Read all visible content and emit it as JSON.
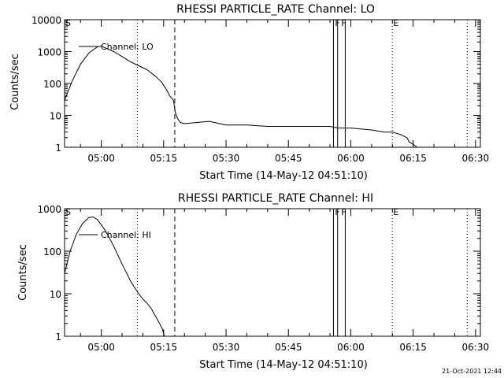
{
  "footer": {
    "date_stamp": "21-Oct-2021 12:44"
  },
  "colors": {
    "background": "#ffffff",
    "foreground": "#000000"
  },
  "chart_data": [
    {
      "type": "line",
      "title": "RHESSI PARTICLE_RATE Channel: LO",
      "xlabel": "Start Time (14-May-12 04:51:10)",
      "ylabel": "Counts/sec",
      "yscale": "log",
      "ylim": [
        1,
        10000
      ],
      "xlim": [
        "04:51:10",
        "06:31:10"
      ],
      "x_unit": "time (hh:mm:ss)",
      "x_ticks": [
        "05:00",
        "05:15",
        "05:30",
        "05:45",
        "06:00",
        "06:15",
        "06:30"
      ],
      "y_ticks": [
        "1",
        "10",
        "100",
        "1000",
        "10000"
      ],
      "legend": {
        "position": "top-left",
        "entries": [
          "Channel: LO"
        ]
      },
      "grid": false,
      "flags": [
        {
          "label": "S",
          "at": "04:51:10"
        },
        {
          "label": "F",
          "at": "05:56:00"
        },
        {
          "label": "F",
          "at": "05:57:30"
        },
        {
          "label": "E",
          "at": "06:10:00"
        }
      ],
      "vlines": [
        {
          "at": "05:08:40",
          "style": "dotted"
        },
        {
          "at": "05:17:40",
          "style": "dashed"
        },
        {
          "at": "05:55:50",
          "style": "solid"
        },
        {
          "at": "05:56:50",
          "style": "solid"
        },
        {
          "at": "05:58:40",
          "style": "solid"
        },
        {
          "at": "06:10:00",
          "style": "dotted"
        },
        {
          "at": "06:28:00",
          "style": "dotted"
        }
      ],
      "series": [
        {
          "name": "Channel: LO",
          "x": [
            "04:51:10",
            "04:53:00",
            "04:55:00",
            "04:57:00",
            "04:59:00",
            "05:00:00",
            "05:01:00",
            "05:03:00",
            "05:05:00",
            "05:07:00",
            "05:09:00",
            "05:11:00",
            "05:13:00",
            "05:14:30",
            "05:15:30",
            "05:16:30",
            "05:17:20",
            "05:17:50",
            "05:18:20",
            "05:19:00",
            "05:20:00",
            "05:23:00",
            "05:26:00",
            "05:30:00",
            "05:35:00",
            "05:40:00",
            "05:45:00",
            "05:50:00",
            "05:55:00",
            "05:57:00",
            "06:00:00",
            "06:05:00",
            "06:08:00",
            "06:10:00",
            "06:12:00",
            "06:13:30",
            "06:14:00",
            "06:16:00"
          ],
          "y": [
            30,
            120,
            400,
            900,
            1400,
            1500,
            1300,
            1000,
            700,
            480,
            360,
            270,
            170,
            110,
            70,
            40,
            30,
            12,
            8,
            6,
            5.5,
            6,
            6.5,
            5,
            5,
            4.5,
            4.5,
            4.5,
            4.5,
            4,
            4,
            3.5,
            3,
            3,
            2.5,
            2,
            1.5,
            1
          ]
        }
      ]
    },
    {
      "type": "line",
      "title": "RHESSI PARTICLE_RATE Channel: HI",
      "xlabel": "Start Time (14-May-12 04:51:10)",
      "ylabel": "Counts/sec",
      "yscale": "log",
      "ylim": [
        1,
        1000
      ],
      "xlim": [
        "04:51:10",
        "06:31:10"
      ],
      "x_unit": "time (hh:mm:ss)",
      "x_ticks": [
        "05:00",
        "05:15",
        "05:30",
        "05:45",
        "06:00",
        "06:15",
        "06:30"
      ],
      "y_ticks": [
        "1",
        "10",
        "100",
        "1000"
      ],
      "legend": {
        "position": "top-left",
        "entries": [
          "Channel: HI"
        ]
      },
      "grid": false,
      "flags": [
        {
          "label": "S",
          "at": "04:51:10"
        },
        {
          "label": "F",
          "at": "05:56:00"
        },
        {
          "label": "F",
          "at": "05:57:30"
        },
        {
          "label": "E",
          "at": "06:10:00"
        }
      ],
      "vlines": [
        {
          "at": "05:08:40",
          "style": "dotted"
        },
        {
          "at": "05:17:40",
          "style": "dashed"
        },
        {
          "at": "05:55:50",
          "style": "solid"
        },
        {
          "at": "05:56:50",
          "style": "solid"
        },
        {
          "at": "05:58:40",
          "style": "solid"
        },
        {
          "at": "06:10:00",
          "style": "dotted"
        },
        {
          "at": "06:28:00",
          "style": "dotted"
        }
      ],
      "series": [
        {
          "name": "Channel: HI",
          "x": [
            "04:51:10",
            "04:52:30",
            "04:54:00",
            "04:55:30",
            "04:57:00",
            "04:58:00",
            "04:59:00",
            "05:00:00",
            "05:01:00",
            "05:02:00",
            "05:03:00",
            "05:04:00",
            "05:05:00",
            "05:06:00",
            "05:07:00",
            "05:08:00",
            "05:09:00",
            "05:10:00",
            "05:11:00",
            "05:12:00",
            "05:13:00",
            "05:14:00",
            "05:14:40",
            "05:15:10"
          ],
          "y": [
            30,
            100,
            250,
            450,
            620,
            640,
            560,
            420,
            300,
            200,
            130,
            80,
            50,
            32,
            20,
            14,
            10,
            7.5,
            6,
            4.5,
            3,
            2,
            1.5,
            1
          ]
        }
      ]
    }
  ]
}
